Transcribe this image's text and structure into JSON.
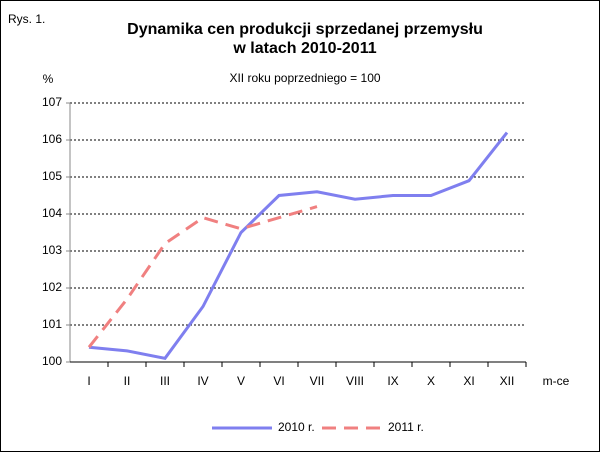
{
  "chart_data": {
    "type": "line",
    "label": "Rys. 1.",
    "title": [
      "Dynamika cen produkcji sprzedanej przemysłu",
      "w latach 2010-2011"
    ],
    "subtitle": "XII roku poprzedniego = 100",
    "y_label": "%",
    "x_label": "m-ce",
    "categories": [
      "I",
      "II",
      "III",
      "IV",
      "V",
      "VI",
      "VII",
      "VIII",
      "IX",
      "X",
      "XI",
      "XII"
    ],
    "series": [
      {
        "name": "2010 r.",
        "color": "#7f7fef",
        "dashed": false,
        "values": [
          100.4,
          100.3,
          100.1,
          101.5,
          103.5,
          104.5,
          104.6,
          104.4,
          104.5,
          104.5,
          104.9,
          106.2
        ]
      },
      {
        "name": "2011 r.",
        "color": "#f08080",
        "dashed": true,
        "values": [
          100.4,
          101.7,
          103.2,
          103.9,
          103.6,
          103.9,
          104.2,
          null,
          null,
          null,
          null,
          null
        ]
      }
    ],
    "ylim": [
      100,
      107
    ],
    "yticks": [
      100,
      101,
      102,
      103,
      104,
      105,
      106,
      107
    ],
    "grid": true
  }
}
